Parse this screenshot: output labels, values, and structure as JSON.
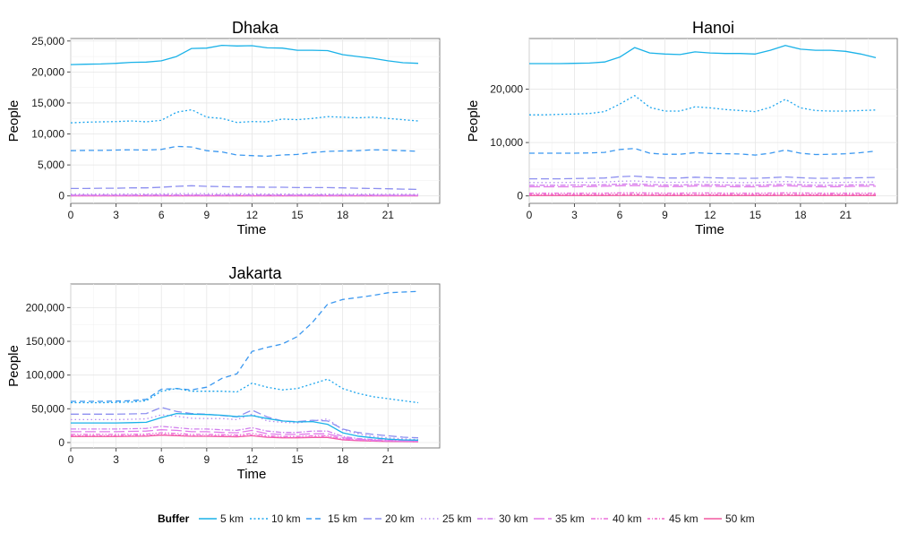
{
  "chart_data": {
    "type": "line",
    "x_label": "Time",
    "y_label": "People",
    "x_ticks": [
      0,
      3,
      6,
      9,
      12,
      15,
      18,
      21
    ],
    "x_range": [
      0,
      23
    ],
    "legend": {
      "title": "Buffer",
      "placement": "bottom",
      "items": [
        {
          "label": "5 km",
          "color": "#1ab2e8",
          "dash": "none"
        },
        {
          "label": "10 km",
          "color": "#1ea6ee",
          "dash": "2,2.5"
        },
        {
          "label": "15 km",
          "color": "#3b98f0",
          "dash": "6,4"
        },
        {
          "label": "20 km",
          "color": "#8d8ff0",
          "dash": "9,4"
        },
        {
          "label": "25 km",
          "color": "#b58cf0",
          "dash": "1.5,3"
        },
        {
          "label": "30 km",
          "color": "#d17fee",
          "dash": "6,2,1.5,2"
        },
        {
          "label": "35 km",
          "color": "#e27aea",
          "dash": "12,4"
        },
        {
          "label": "40 km",
          "color": "#ec70dc",
          "dash": "5,2,1.5,2,1.5,2"
        },
        {
          "label": "45 km",
          "color": "#f067c5",
          "dash": "3,2,1,2"
        },
        {
          "label": "50 km",
          "color": "#f2589f",
          "dash": "none"
        }
      ]
    },
    "panels": [
      {
        "title": "Dhaka",
        "y_ticks": [
          0,
          5000,
          10000,
          15000,
          20000,
          25000
        ],
        "y_tick_labels": [
          "0",
          "5,000",
          "10,000",
          "15,000",
          "20,000",
          "25,000"
        ],
        "y_range": [
          -1200,
          25400
        ],
        "series": [
          {
            "name": "5 km",
            "values": [
              21200,
              21250,
              21300,
              21400,
              21550,
              21600,
              21800,
              22500,
              23800,
              23850,
              24300,
              24200,
              24250,
              23900,
              23850,
              23500,
              23500,
              23450,
              22800,
              22500,
              22200,
              21800,
              21500,
              21400
            ]
          },
          {
            "name": "10 km",
            "values": [
              11800,
              11900,
              11950,
              12000,
              12100,
              11950,
              12200,
              13500,
              13900,
              12700,
              12500,
              11850,
              12000,
              11950,
              12400,
              12300,
              12500,
              12800,
              12700,
              12600,
              12700,
              12500,
              12300,
              12100
            ]
          },
          {
            "name": "15 km",
            "values": [
              7300,
              7350,
              7350,
              7400,
              7450,
              7400,
              7500,
              8000,
              7900,
              7300,
              7100,
              6600,
              6500,
              6400,
              6600,
              6700,
              7000,
              7200,
              7250,
              7300,
              7450,
              7400,
              7300,
              7200
            ]
          },
          {
            "name": "20 km",
            "values": [
              1200,
              1200,
              1250,
              1250,
              1300,
              1300,
              1400,
              1550,
              1650,
              1550,
              1500,
              1450,
              1450,
              1400,
              1400,
              1350,
              1350,
              1350,
              1300,
              1250,
              1200,
              1150,
              1100,
              1050
            ]
          },
          {
            "name": "25 km",
            "values": [
              300,
              300,
              300,
              300,
              320,
              320,
              330,
              360,
              380,
              360,
              350,
              340,
              330,
              320,
              320,
              310,
              310,
              310,
              300,
              300,
              290,
              280,
              270,
              260
            ]
          },
          {
            "name": "30 km",
            "values": [
              130,
              130,
              130,
              130,
              140,
              140,
              140,
              150,
              160,
              150,
              150,
              140,
              140,
              140,
              140,
              140,
              140,
              140,
              130,
              130,
              130,
              120,
              120,
              120
            ]
          },
          {
            "name": "35 km",
            "values": [
              80,
              80,
              80,
              80,
              85,
              85,
              85,
              90,
              95,
              90,
              90,
              85,
              85,
              85,
              85,
              85,
              85,
              85,
              80,
              80,
              80,
              75,
              75,
              75
            ]
          },
          {
            "name": "40 km",
            "values": [
              50,
              50,
              50,
              50,
              50,
              50,
              55,
              60,
              60,
              55,
              55,
              55,
              50,
              50,
              50,
              50,
              50,
              50,
              50,
              50,
              50,
              50,
              45,
              45
            ]
          },
          {
            "name": "45 km",
            "values": [
              30,
              30,
              30,
              30,
              30,
              30,
              30,
              35,
              35,
              30,
              30,
              30,
              30,
              30,
              30,
              30,
              30,
              30,
              30,
              30,
              30,
              30,
              30,
              30
            ]
          },
          {
            "name": "50 km",
            "values": [
              15,
              15,
              15,
              15,
              15,
              15,
              15,
              20,
              20,
              15,
              15,
              15,
              15,
              15,
              15,
              15,
              15,
              15,
              15,
              15,
              15,
              15,
              15,
              15
            ]
          }
        ]
      },
      {
        "title": "Hanoi",
        "y_ticks": [
          0,
          10000,
          20000
        ],
        "y_tick_labels": [
          "0",
          "10,000",
          "20,000"
        ],
        "y_range": [
          -1400,
          29500
        ],
        "series": [
          {
            "name": "5 km",
            "values": [
              24800,
              24800,
              24800,
              24850,
              24900,
              25100,
              26000,
              27800,
              26800,
              26600,
              26500,
              27000,
              26800,
              26700,
              26700,
              26600,
              27300,
              28200,
              27500,
              27300,
              27300,
              27100,
              26600,
              25900
            ]
          },
          {
            "name": "10 km",
            "values": [
              15200,
              15200,
              15300,
              15350,
              15450,
              15800,
              17200,
              18800,
              16600,
              15900,
              15900,
              16700,
              16500,
              16200,
              16000,
              15800,
              16600,
              18100,
              16500,
              16000,
              15900,
              15900,
              16000,
              16100
            ]
          },
          {
            "name": "15 km",
            "values": [
              8000,
              8000,
              8000,
              8000,
              8050,
              8150,
              8700,
              8900,
              8000,
              7800,
              7800,
              8100,
              7950,
              7900,
              7850,
              7650,
              8000,
              8600,
              8000,
              7750,
              7800,
              7900,
              8100,
              8400
            ]
          },
          {
            "name": "20 km",
            "values": [
              3200,
              3200,
              3200,
              3250,
              3300,
              3350,
              3600,
              3700,
              3500,
              3350,
              3350,
              3500,
              3400,
              3350,
              3300,
              3300,
              3400,
              3550,
              3400,
              3300,
              3300,
              3350,
              3400,
              3450
            ]
          },
          {
            "name": "25 km",
            "values": [
              2500,
              2500,
              2500,
              2550,
              2550,
              2600,
              2750,
              2800,
              2650,
              2550,
              2550,
              2650,
              2600,
              2550,
              2500,
              2500,
              2600,
              2700,
              2600,
              2500,
              2500,
              2550,
              2600,
              2600
            ]
          },
          {
            "name": "30 km",
            "values": [
              2000,
              2000,
              2000,
              2050,
              2050,
              2100,
              2200,
              2250,
              2150,
              2050,
              2050,
              2150,
              2100,
              2050,
              2000,
              2000,
              2100,
              2200,
              2100,
              2000,
              2000,
              2050,
              2100,
              2100
            ]
          },
          {
            "name": "35 km",
            "values": [
              1700,
              1700,
              1700,
              1700,
              1750,
              1800,
              1900,
              1950,
              1850,
              1750,
              1750,
              1850,
              1800,
              1750,
              1700,
              1700,
              1800,
              1900,
              1800,
              1700,
              1700,
              1750,
              1800,
              1800
            ]
          },
          {
            "name": "40 km",
            "values": [
              500,
              500,
              500,
              500,
              510,
              520,
              560,
              580,
              540,
              520,
              520,
              550,
              540,
              520,
              510,
              500,
              530,
              560,
              540,
              510,
              500,
              510,
              520,
              520
            ]
          },
          {
            "name": "45 km",
            "values": [
              250,
              250,
              250,
              250,
              260,
              260,
              280,
              290,
              270,
              260,
              260,
              270,
              270,
              260,
              250,
              250,
              260,
              280,
              270,
              260,
              250,
              250,
              260,
              260
            ]
          },
          {
            "name": "50 km",
            "values": [
              80,
              80,
              80,
              80,
              80,
              85,
              90,
              95,
              90,
              85,
              85,
              90,
              85,
              85,
              80,
              80,
              85,
              90,
              85,
              80,
              80,
              80,
              85,
              85
            ]
          }
        ]
      },
      {
        "title": "Jakarta",
        "y_ticks": [
          0,
          50000,
          100000,
          150000,
          200000
        ],
        "y_tick_labels": [
          "0",
          "50,000",
          "100,000",
          "150,000",
          "200,000"
        ],
        "y_range": [
          -8000,
          235000
        ],
        "series": [
          {
            "name": "5 km",
            "values": [
              29000,
              29000,
              29000,
              29000,
              29500,
              30000,
              37000,
              43000,
              42000,
              41500,
              40500,
              38500,
              40000,
              35500,
              32000,
              30500,
              31000,
              27000,
              14500,
              9500,
              7000,
              5000,
              4000,
              3500
            ]
          },
          {
            "name": "10 km",
            "values": [
              59000,
              59000,
              59000,
              59500,
              60000,
              62000,
              76000,
              80000,
              76000,
              76000,
              76000,
              75000,
              88000,
              82000,
              78000,
              80000,
              87000,
              94000,
              80000,
              73000,
              68000,
              65000,
              62000,
              59000
            ]
          },
          {
            "name": "15 km",
            "values": [
              61000,
              61000,
              61000,
              61500,
              62000,
              64000,
              79000,
              80000,
              78000,
              82000,
              95000,
              102000,
              135000,
              141000,
              146000,
              157000,
              178000,
              205000,
              212000,
              215000,
              218000,
              222000,
              223000,
              224000
            ]
          },
          {
            "name": "20 km",
            "values": [
              42000,
              42000,
              42000,
              42000,
              42500,
              43000,
              52000,
              46000,
              43000,
              42000,
              40000,
              38000,
              48000,
              38000,
              32000,
              31000,
              33000,
              32000,
              20000,
              15000,
              12000,
              10000,
              8000,
              7000
            ]
          },
          {
            "name": "25 km",
            "values": [
              34000,
              34000,
              34000,
              34000,
              34500,
              35000,
              41000,
              39000,
              36000,
              35500,
              35500,
              34000,
              42000,
              32000,
              30000,
              29000,
              32000,
              35000,
              19000,
              13000,
              9000,
              7000,
              5500,
              4500
            ]
          },
          {
            "name": "30 km",
            "values": [
              20000,
              20000,
              20000,
              20000,
              20500,
              21000,
              24000,
              22000,
              20000,
              20000,
              19000,
              18000,
              22000,
              17000,
              15000,
              15000,
              17000,
              17000,
              9000,
              6000,
              4500,
              3500,
              3000,
              2500
            ]
          },
          {
            "name": "35 km",
            "values": [
              16000,
              16000,
              16000,
              16000,
              16500,
              17000,
              19000,
              18000,
              16000,
              16000,
              15000,
              14500,
              18000,
              13000,
              12000,
              12000,
              13000,
              13000,
              7000,
              5000,
              3500,
              2800,
              2300,
              2000
            ]
          },
          {
            "name": "40 km",
            "values": [
              12000,
              12000,
              12000,
              12000,
              12200,
              12500,
              14500,
              13500,
              12000,
              12000,
              11500,
              11000,
              13500,
              10000,
              9000,
              9000,
              10000,
              10000,
              5500,
              3800,
              2800,
              2200,
              1800,
              1600
            ]
          },
          {
            "name": "45 km",
            "values": [
              10000,
              10000,
              10000,
              10000,
              10200,
              10500,
              12000,
              11200,
              10000,
              10000,
              9500,
              9200,
              11000,
              8500,
              7500,
              7500,
              8200,
              8200,
              4500,
              3200,
              2400,
              1800,
              1500,
              1300
            ]
          },
          {
            "name": "50 km",
            "values": [
              9000,
              9000,
              9000,
              9000,
              9200,
              9500,
              11000,
              10200,
              9200,
              9200,
              8800,
              8500,
              10000,
              7800,
              7000,
              7000,
              7600,
              7600,
              4000,
              2900,
              2200,
              1700,
              1400,
              1200
            ]
          }
        ]
      }
    ]
  }
}
